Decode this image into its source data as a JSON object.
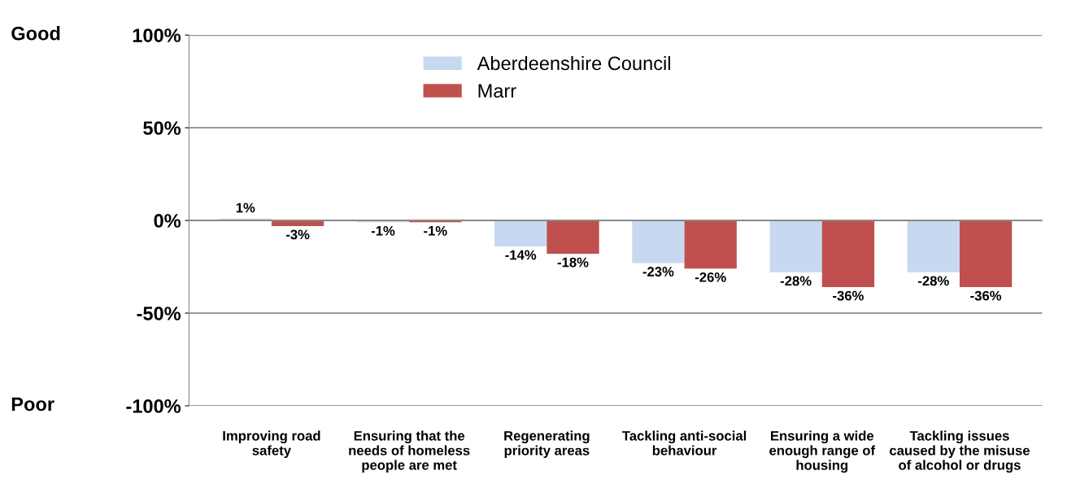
{
  "chart_data": {
    "type": "bar",
    "categories": [
      "Improving road safety",
      "Ensuring that the needs of homeless people are met",
      "Regenerating priority areas",
      "Tackling anti-social behaviour",
      "Ensuring a wide enough range of housing",
      "Tackling issues caused by the misuse of alcohol or drugs"
    ],
    "series": [
      {
        "name": "Aberdeenshire Council",
        "color": "#c6d9f0",
        "values": [
          1,
          -1,
          -14,
          -23,
          -28,
          -28
        ],
        "value_labels": [
          "1%",
          "-1%",
          "-14%",
          "-23%",
          "-28%",
          "-28%"
        ]
      },
      {
        "name": "Marr",
        "color": "#c0504d",
        "values": [
          -3,
          -1,
          -18,
          -26,
          -36,
          -36
        ],
        "value_labels": [
          "-3%",
          "-1%",
          "-18%",
          "-26%",
          "-36%",
          "-36%"
        ]
      }
    ],
    "ylim": [
      -100,
      100
    ],
    "yticks": [
      {
        "value": 100,
        "label": "100%"
      },
      {
        "value": 50,
        "label": "50%"
      },
      {
        "value": 0,
        "label": "0%"
      },
      {
        "value": -50,
        "label": "-50%"
      },
      {
        "value": -100,
        "label": "-100%"
      }
    ],
    "grid": "y",
    "legend": "top",
    "annotations": [
      "Good",
      "Poor"
    ]
  }
}
